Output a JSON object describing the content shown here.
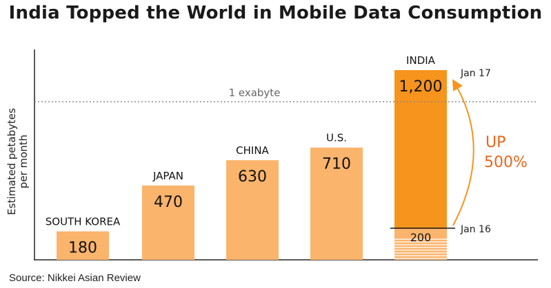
{
  "chart_data": {
    "type": "bar",
    "title": "India Topped the World in Mobile Data Consumption",
    "ylabel": "Estimated petabytes per month",
    "ylabel_lines": [
      "Estimated petabytes",
      "per month"
    ],
    "ylim": [
      0,
      1400
    ],
    "categories": [
      "SOUTH KOREA",
      "JAPAN",
      "CHINA",
      "U.S.",
      "INDIA"
    ],
    "values": [
      180,
      470,
      630,
      710,
      1200
    ],
    "value_labels": [
      "180",
      "470",
      "630",
      "710",
      "1,200"
    ],
    "reference_line": {
      "value": 1000,
      "label": "1 exabyte"
    },
    "india_previous": {
      "value": 200,
      "label": "200",
      "date_label": "Jan 16"
    },
    "india_current_date_label": "Jan 17",
    "growth_annotation": {
      "line1": "UP",
      "line2": "500%"
    },
    "colors": {
      "bar": "#fbb46c",
      "highlight": "#f7941d",
      "highlight_light": "#fbb46c",
      "annotation": "#e8661b",
      "reference_line": "#888888"
    }
  },
  "source": "Source: Nikkei Asian Review"
}
